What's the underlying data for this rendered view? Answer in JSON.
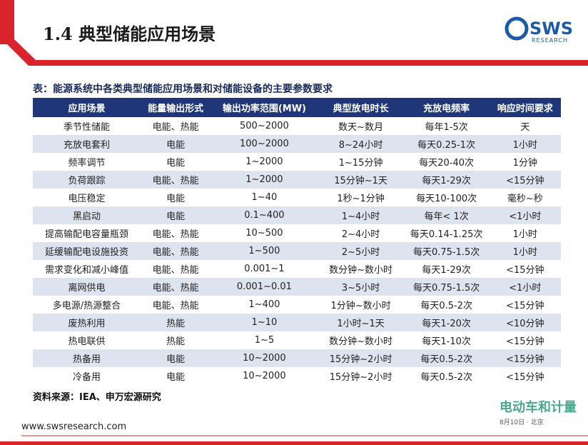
{
  "header": {
    "title": "1.4 典型储能应用场景",
    "logo": "SWS",
    "logo_sub": "RESEARCH"
  },
  "table": {
    "caption": "表：能源系统中各类典型储能应用场景和对储能设备的主要参数要求",
    "columns": [
      "应用场景",
      "能量输出形式",
      "输出功率范围(MW)",
      "典型放电时长",
      "充放电频率",
      "响应时间要求"
    ],
    "rows": [
      [
        "季节性储能",
        "电能、热能",
        "500~2000",
        "数天~数月",
        "每年1-5次",
        "天"
      ],
      [
        "充放电套利",
        "电能",
        "100~2000",
        "8~24小时",
        "每天0.25-1次",
        "1小时"
      ],
      [
        "频率调节",
        "电能",
        "1~2000",
        "1~15分钟",
        "每天20-40次",
        "1分钟"
      ],
      [
        "负荷跟踪",
        "电能、热能",
        "1~2000",
        "15分钟~1天",
        "每天1-29次",
        "<15分钟"
      ],
      [
        "电压稳定",
        "电能",
        "1~40",
        "1秒~1分钟",
        "每天10-100次",
        "毫秒~秒"
      ],
      [
        "黑启动",
        "电能",
        "0.1~400",
        "1~4小时",
        "每年< 1次",
        "<1小时"
      ],
      [
        "提高输配电容量瓶颈",
        "电能、热能",
        "10~500",
        "2~4小时",
        "每天0.14-1.25次",
        "1小时"
      ],
      [
        "延缓输配电设施投资",
        "电能、热能",
        "1~500",
        "2~5小时",
        "每天0.75-1.5次",
        "1小时"
      ],
      [
        "需求变化和减小峰值",
        "电能、热能",
        "0.001~1",
        "数分钟~数小时",
        "每天1-29次",
        "<15分钟"
      ],
      [
        "离网供电",
        "电能、热能",
        "0.001~0.01",
        "3~5小时",
        "每天0.75-1.5次",
        "<1小时"
      ],
      [
        "多电源/热源整合",
        "电能、热能",
        "1~400",
        "1分钟~数小时",
        "每天0.5-2次",
        "<15分钟"
      ],
      [
        "废热利用",
        "热能",
        "1~10",
        "1小时~1天",
        "每天1-20次",
        "<10分钟"
      ],
      [
        "热电联供",
        "热能",
        "1~5",
        "数分钟~数小时",
        "每天1-10次",
        "<15分钟"
      ],
      [
        "热备用",
        "电能",
        "10~2000",
        "15分钟~2小时",
        "每天0.5-2次",
        "<15分钟"
      ],
      [
        "冷备用",
        "电能",
        "10~2000",
        "15分钟~2小时",
        "每天0.5-2次",
        "<15分钟"
      ]
    ],
    "source": "资料来源：IEA、申万宏源研究"
  },
  "footer": {
    "url": "www.swsresearch.com"
  },
  "watermark": {
    "name": "电动车和计量",
    "sub": "8月10日 · 北京"
  }
}
